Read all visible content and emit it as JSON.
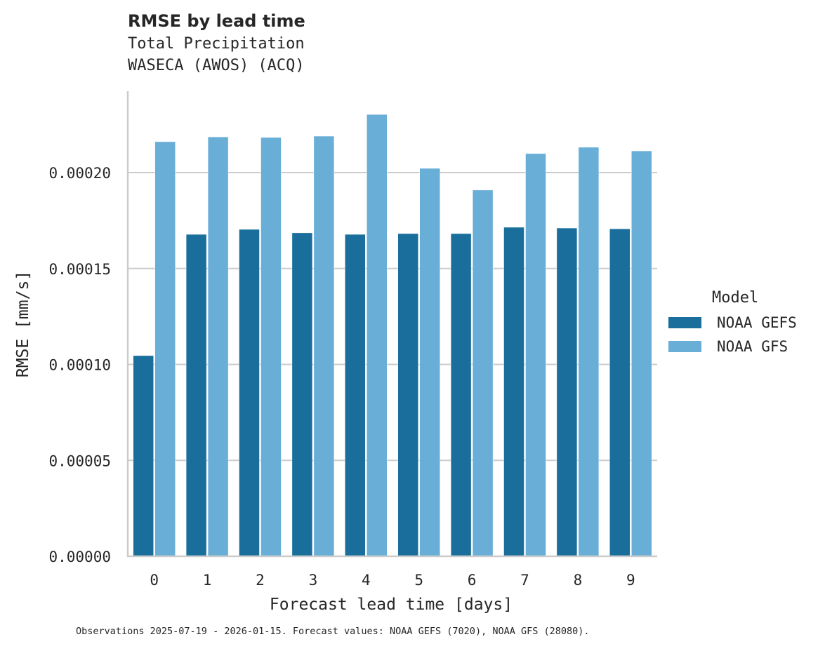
{
  "header": {
    "title": "RMSE by lead time",
    "subtitle_1": "Total Precipitation",
    "subtitle_2": "WASECA (AWOS) (ACQ)"
  },
  "footer": {
    "note": "Observations 2025-07-19 - 2026-01-15. Forecast values: NOAA GEFS (7020), NOAA GFS (28080)."
  },
  "legend": {
    "title": "Model",
    "items": [
      {
        "label": "NOAA GEFS",
        "color": "#1a6e9c"
      },
      {
        "label": "NOAA GFS",
        "color": "#68aed6"
      }
    ]
  },
  "colors": {
    "gefs": "#1a6e9c",
    "gfs": "#68aed6",
    "grid": "#cccccc",
    "axis": "#cccccc",
    "text": "#262626"
  },
  "chart_data": {
    "type": "bar",
    "title": "RMSE by lead time",
    "subtitle": "Total Precipitation / WASECA (AWOS) (ACQ)",
    "xlabel": "Forecast lead time [days]",
    "ylabel": "RMSE [mm/s]",
    "categories": [
      "0",
      "1",
      "2",
      "3",
      "4",
      "5",
      "6",
      "7",
      "8",
      "9"
    ],
    "series": [
      {
        "name": "NOAA GEFS",
        "values": [
          0.0001046,
          0.0001678,
          0.0001704,
          0.0001686,
          0.0001678,
          0.0001682,
          0.0001682,
          0.0001715,
          0.0001711,
          0.0001707
        ]
      },
      {
        "name": "NOAA GFS",
        "values": [
          0.0002161,
          0.0002186,
          0.0002183,
          0.000219,
          0.0002303,
          0.0002022,
          0.0001909,
          0.0002099,
          0.0002132,
          0.0002113
        ]
      }
    ],
    "yticks": [
      "0.00000",
      "0.00005",
      "0.00010",
      "0.00015",
      "0.00020"
    ],
    "ylim": [
      0,
      0.000242
    ],
    "grid": "horizontal",
    "legend_position": "right"
  }
}
